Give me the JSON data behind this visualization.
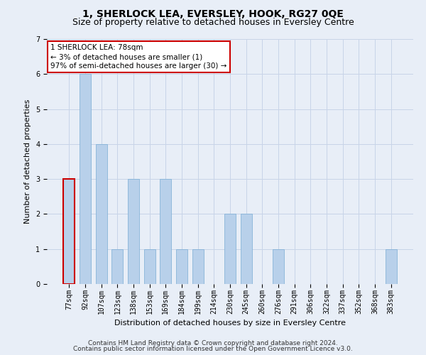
{
  "title": "1, SHERLOCK LEA, EVERSLEY, HOOK, RG27 0QE",
  "subtitle": "Size of property relative to detached houses in Eversley Centre",
  "xlabel": "Distribution of detached houses by size in Eversley Centre",
  "ylabel": "Number of detached properties",
  "categories": [
    "77sqm",
    "92sqm",
    "107sqm",
    "123sqm",
    "138sqm",
    "153sqm",
    "169sqm",
    "184sqm",
    "199sqm",
    "214sqm",
    "230sqm",
    "245sqm",
    "260sqm",
    "276sqm",
    "291sqm",
    "306sqm",
    "322sqm",
    "337sqm",
    "352sqm",
    "368sqm",
    "383sqm"
  ],
  "values": [
    3,
    6,
    4,
    1,
    3,
    1,
    3,
    1,
    1,
    0,
    2,
    2,
    0,
    1,
    0,
    0,
    0,
    0,
    0,
    0,
    1
  ],
  "highlight_index": 0,
  "bar_color": "#b8d0ea",
  "highlight_edge_color": "#cc0000",
  "normal_edge_color": "#7aadd4",
  "ylim": [
    0,
    7
  ],
  "yticks": [
    0,
    1,
    2,
    3,
    4,
    5,
    6,
    7
  ],
  "annotation_text": "1 SHERLOCK LEA: 78sqm\n← 3% of detached houses are smaller (1)\n97% of semi-detached houses are larger (30) →",
  "annotation_box_color": "#ffffff",
  "annotation_edge_color": "#cc0000",
  "footer_line1": "Contains HM Land Registry data © Crown copyright and database right 2024.",
  "footer_line2": "Contains public sector information licensed under the Open Government Licence v3.0.",
  "background_color": "#e8eef7",
  "grid_color": "#c8d4e8",
  "title_fontsize": 10,
  "subtitle_fontsize": 9,
  "axis_label_fontsize": 8,
  "tick_fontsize": 7,
  "annotation_fontsize": 7.5,
  "footer_fontsize": 6.5
}
